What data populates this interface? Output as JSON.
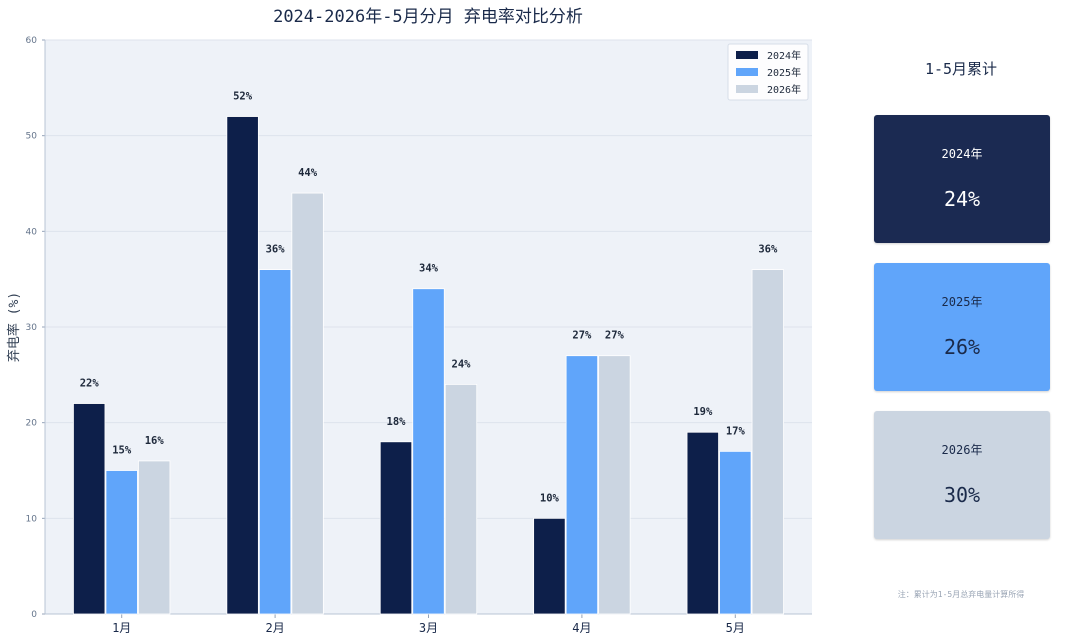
{
  "chart_data": {
    "type": "bar",
    "title": "2024-2026年-5月分月 弃电率对比分析",
    "xlabel": "",
    "ylabel": "弃电率 (%)",
    "ylim": [
      0,
      60
    ],
    "yticks": [
      0,
      10,
      20,
      30,
      40,
      50,
      60
    ],
    "categories": [
      "1月",
      "2月",
      "3月",
      "4月",
      "5月"
    ],
    "series": [
      {
        "name": "2024年",
        "color": "#0d1f4a",
        "values": [
          22,
          52,
          18,
          10,
          19
        ],
        "labels": [
          "22%",
          "52%",
          "18%",
          "10%",
          "19%"
        ]
      },
      {
        "name": "2025年",
        "color": "#60a5fa",
        "values": [
          15,
          36,
          34,
          27,
          17
        ],
        "labels": [
          "15%",
          "36%",
          "34%",
          "27%",
          "17%"
        ]
      },
      {
        "name": "2026年",
        "color": "#cbd5e1",
        "values": [
          16,
          44,
          24,
          27,
          36
        ],
        "labels": [
          "16%",
          "44%",
          "24%",
          "27%",
          "36%"
        ]
      }
    ],
    "grid": true,
    "legend_position": "top-right",
    "plot_background": "#eef2f8"
  },
  "summary": {
    "title": "1-5月累计",
    "cards": [
      {
        "year": "2024年",
        "value": "24%",
        "bg": "#1b2a52",
        "fg": "#ffffff"
      },
      {
        "year": "2025年",
        "value": "26%",
        "bg": "#60a5fa",
        "fg": "#1a2a4a"
      },
      {
        "year": "2026年",
        "value": "30%",
        "bg": "#cbd5e1",
        "fg": "#1a2a4a"
      }
    ],
    "note": "注：累计为1-5月总弃电量计算所得"
  }
}
